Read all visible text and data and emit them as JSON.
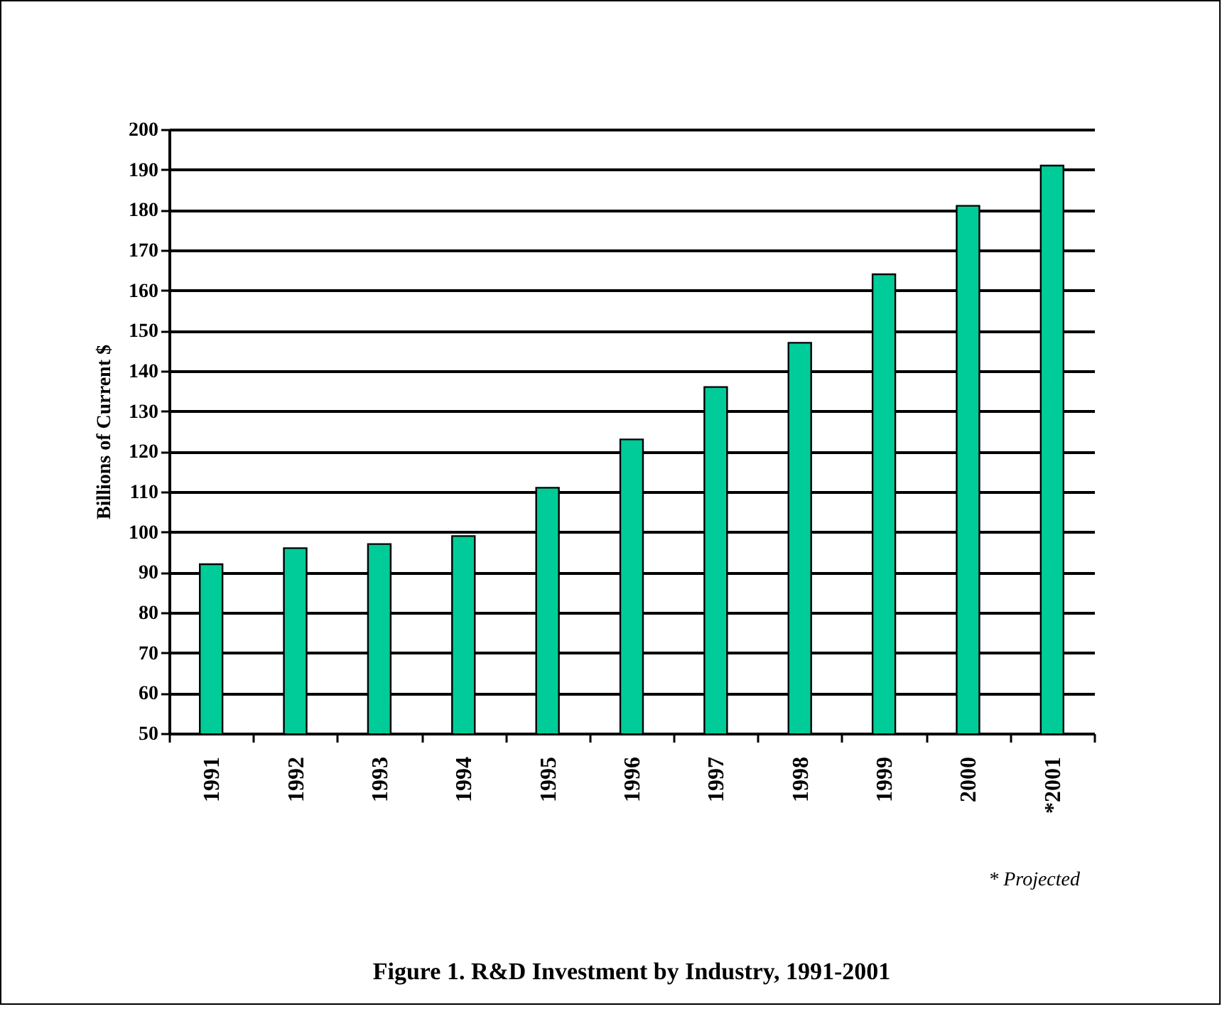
{
  "chart_data": {
    "type": "bar",
    "title": "Figure 1.  R&D Investment by Industry, 1991-2001",
    "ylabel": "Billions of Current $",
    "annotations": [
      "* Projected"
    ],
    "categories": [
      "1991",
      "1992",
      "1993",
      "1994",
      "1995",
      "1996",
      "1997",
      "1998",
      "1999",
      "2000",
      "*2001"
    ],
    "values": [
      92,
      96,
      97,
      99,
      111,
      123,
      136,
      147,
      164,
      181,
      191
    ],
    "color": "#00cc99",
    "ylim": [
      50,
      200
    ],
    "yticks": [
      50,
      60,
      70,
      80,
      90,
      100,
      110,
      120,
      130,
      140,
      150,
      160,
      170,
      180,
      190,
      200
    ],
    "grid": "y"
  }
}
